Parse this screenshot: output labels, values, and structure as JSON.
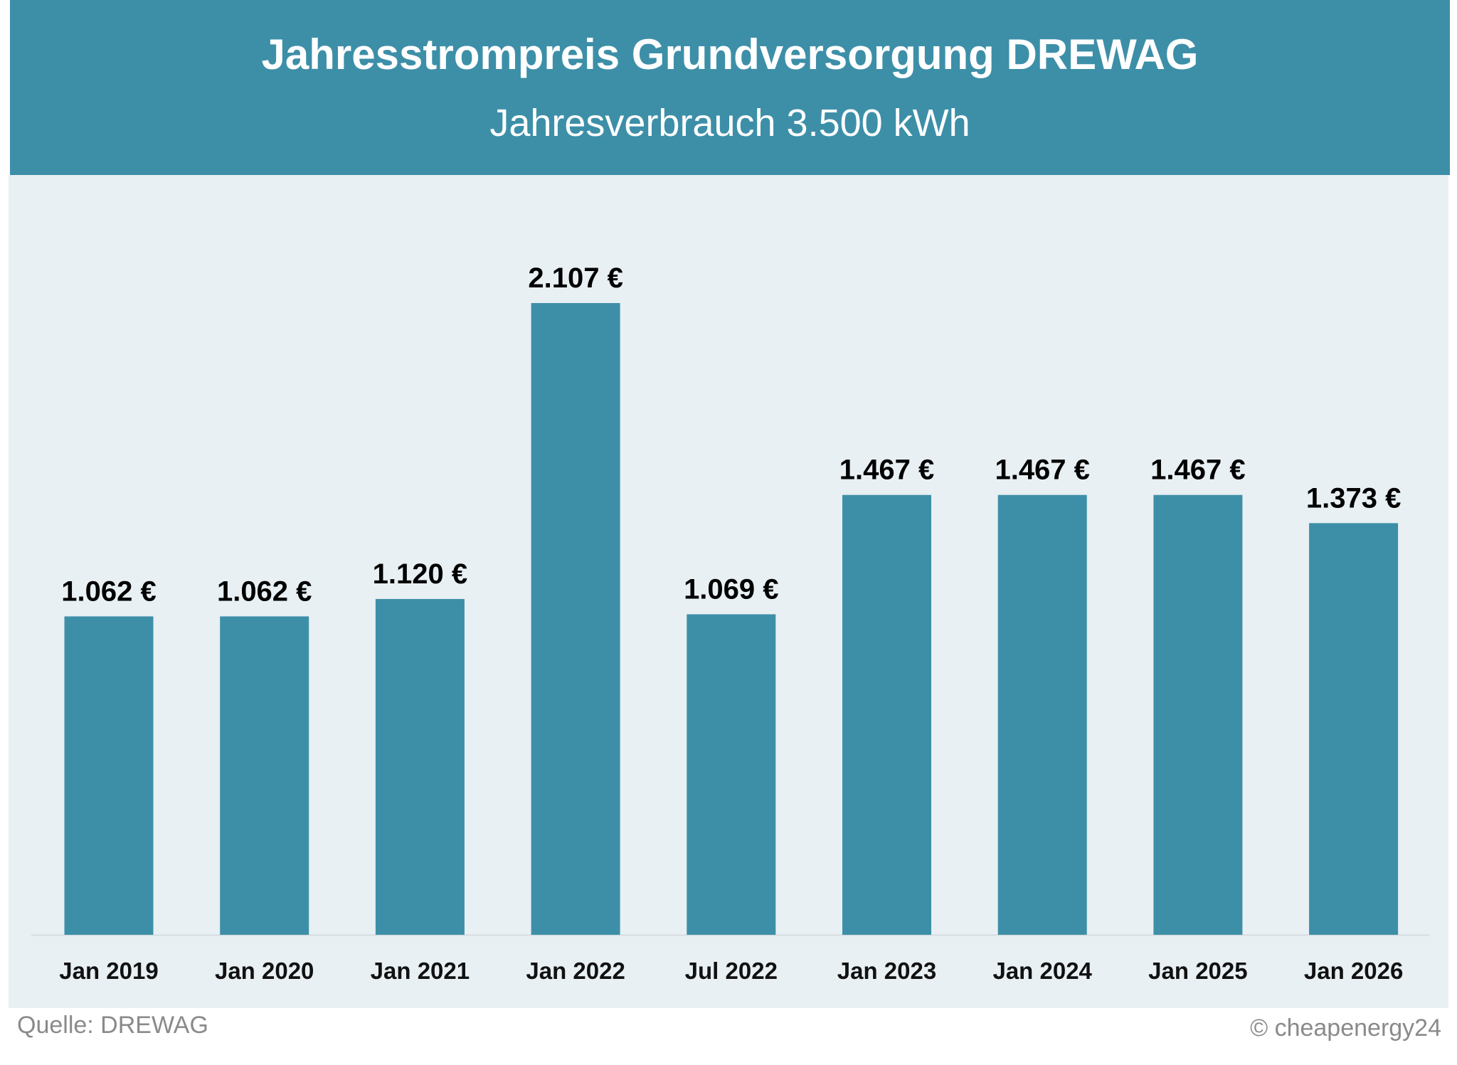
{
  "chart_data": {
    "type": "bar",
    "title": "Jahresstrompreis Grundversorgung DREWAG",
    "subtitle": "Jahresverbrauch 3.500 kWh",
    "categories": [
      "Jan 2019",
      "Jan 2020",
      "Jan 2021",
      "Jan 2022",
      "Jul 2022",
      "Jan 2023",
      "Jan 2024",
      "Jan 2025",
      "Jan 2026"
    ],
    "values": [
      1062,
      1062,
      1120,
      2107,
      1069,
      1467,
      1467,
      1467,
      1373
    ],
    "data_labels": [
      "1.062 €",
      "1.062 €",
      "1.120 €",
      "2.107 €",
      "1.069 €",
      "1.467 €",
      "1.467 €",
      "1.467 €",
      "1.373 €"
    ],
    "xlabel": "",
    "ylabel": "",
    "ylim": [
      0,
      2500
    ],
    "grid": false,
    "bar_color": "#3d8fa8",
    "background_color": "#e8f0f3"
  },
  "footer": {
    "source": "Quelle: DREWAG",
    "copyright": "© cheapenergy24"
  }
}
